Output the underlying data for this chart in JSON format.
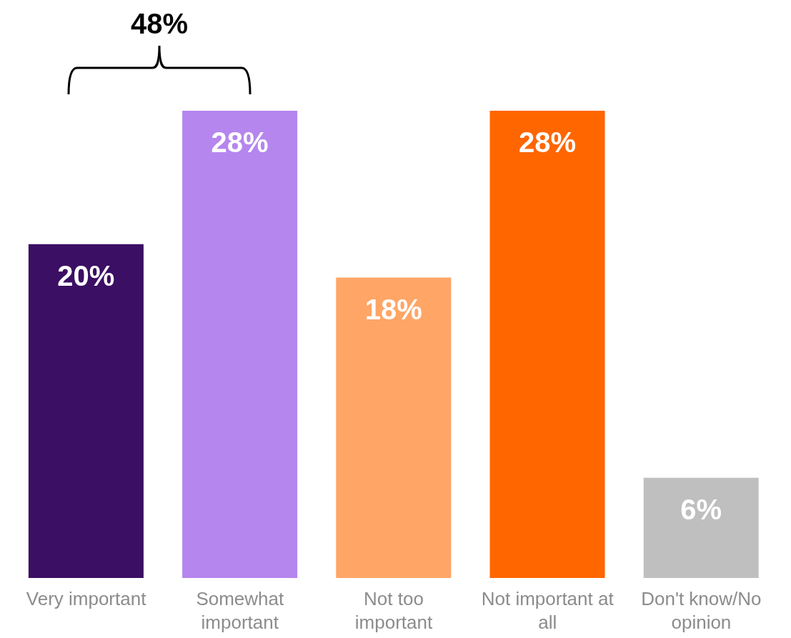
{
  "chart_data": {
    "type": "bar",
    "categories": [
      "Very important",
      "Somewhat important",
      "Not too important",
      "Not important at all",
      "Don't know/No opinion"
    ],
    "values": [
      20,
      28,
      18,
      28,
      6
    ],
    "colors": [
      "#3b0f63",
      "#b586ee",
      "#ffa566",
      "#ff6600",
      "#bfbfbf"
    ],
    "value_labels": [
      "20%",
      "28%",
      "18%",
      "28%",
      "6%"
    ],
    "annotations": [
      "48%"
    ]
  }
}
